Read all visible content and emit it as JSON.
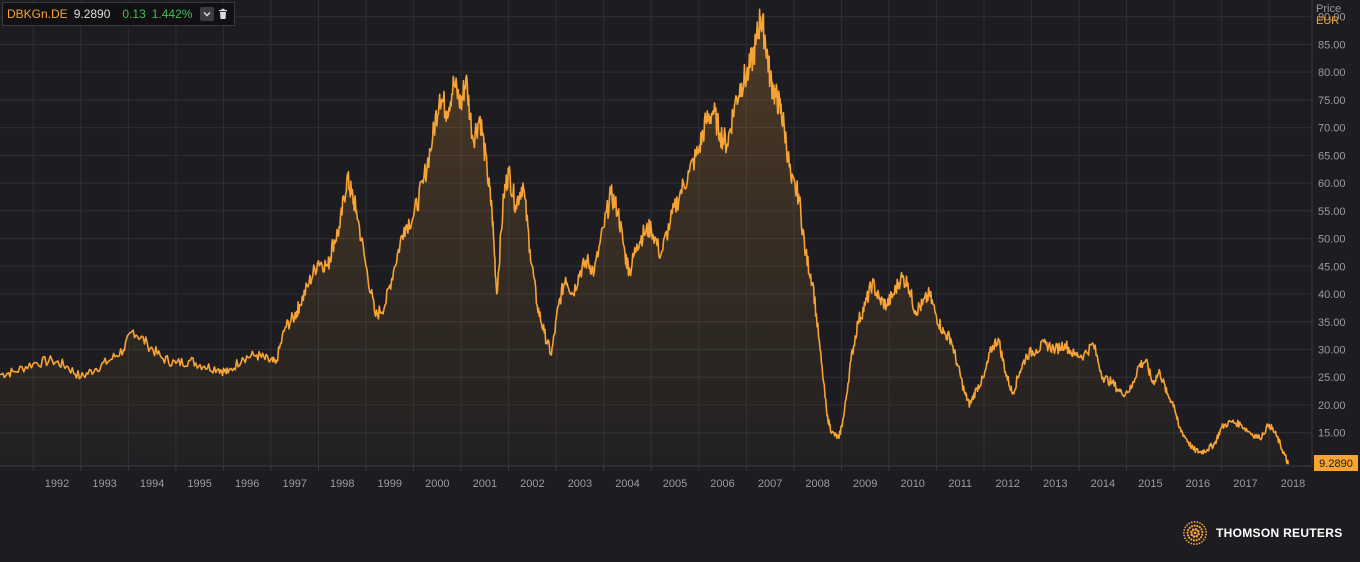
{
  "legend": {
    "ric": "DBKGn.DE",
    "last": "9.2890",
    "change": "0.13",
    "change_pct": "1.442%",
    "dropdown_icon": "chevron-down-icon",
    "delete_icon": "trash-icon"
  },
  "axis": {
    "title": "Price",
    "currency": "EUR"
  },
  "brand": {
    "name": "THOMSON REUTERS",
    "icon": "reuters-dot-logo"
  },
  "colors": {
    "line": "#f7a335",
    "background": "#1d1d21",
    "grid": "#2e2e34",
    "up": "#3fbf56"
  },
  "chart_data": {
    "type": "area",
    "ylim": [
      9,
      93
    ],
    "xlim": [
      1991.3,
      2018.9
    ],
    "grid": true,
    "y_ticks": [
      "15.00",
      "20.00",
      "25.00",
      "30.00",
      "35.00",
      "40.00",
      "45.00",
      "50.00",
      "55.00",
      "60.00",
      "65.00",
      "70.00",
      "75.00",
      "80.00",
      "85.00",
      "90.00"
    ],
    "x_ticks": [
      "1992",
      "1993",
      "1994",
      "1995",
      "1996",
      "1997",
      "1998",
      "1999",
      "2000",
      "2001",
      "2002",
      "2003",
      "2004",
      "2005",
      "2006",
      "2007",
      "2008",
      "2009",
      "2010",
      "2011",
      "2012",
      "2013",
      "2014",
      "2015",
      "2016",
      "2017",
      "2018"
    ],
    "last_price_label": "9.2890",
    "series": [
      {
        "x": [
          1991.3,
          1991.6,
          1992.0,
          1992.4,
          1992.7,
          1993.0,
          1993.3,
          1993.6,
          1993.9,
          1994.1,
          1994.4,
          1994.7,
          1995.0,
          1995.3,
          1995.6,
          1995.9,
          1996.1,
          1996.4,
          1996.7,
          1996.95,
          1997.1,
          1997.3,
          1997.5,
          1997.6,
          1997.8,
          1998.0,
          1998.2,
          1998.3,
          1998.45,
          1998.6,
          1998.7,
          1998.8,
          1999.0,
          1999.2,
          1999.4,
          1999.6,
          1999.8,
          2000.0,
          2000.2,
          2000.4,
          2000.55,
          2000.7,
          2000.85,
          2001.0,
          2001.1,
          2001.25,
          2001.4,
          2001.55,
          2001.65,
          2001.75,
          2001.9,
          2002.0,
          2002.15,
          2002.3,
          2002.45,
          2002.6,
          2002.75,
          2002.9,
          2003.05,
          2003.2,
          2003.35,
          2003.5,
          2003.65,
          2003.8,
          2004.0,
          2004.15,
          2004.3,
          2004.45,
          2004.55,
          2004.7,
          2004.85,
          2005.0,
          2005.2,
          2005.4,
          2005.6,
          2005.8,
          2006.0,
          2006.15,
          2006.3,
          2006.45,
          2006.6,
          2006.75,
          2006.9,
          2007.05,
          2007.2,
          2007.3,
          2007.4,
          2007.5,
          2007.6,
          2007.7,
          2007.8,
          2007.95,
          2008.1,
          2008.25,
          2008.4,
          2008.55,
          2008.7,
          2008.8,
          2008.95,
          2009.05,
          2009.2,
          2009.35,
          2009.5,
          2009.65,
          2009.8,
          2009.95,
          2010.1,
          2010.25,
          2010.4,
          2010.55,
          2010.7,
          2010.85,
          2011.0,
          2011.15,
          2011.3,
          2011.45,
          2011.6,
          2011.7,
          2011.85,
          2012.0,
          2012.15,
          2012.3,
          2012.45,
          2012.6,
          2012.75,
          2012.9,
          2013.1,
          2013.3,
          2013.5,
          2013.7,
          2013.9,
          2014.1,
          2014.3,
          2014.5,
          2014.7,
          2014.9,
          2015.1,
          2015.25,
          2015.4,
          2015.55,
          2015.7,
          2015.85,
          2016.0,
          2016.1,
          2016.25,
          2016.4,
          2016.55,
          2016.7,
          2016.85,
          2017.0,
          2017.2,
          2017.4,
          2017.6,
          2017.8,
          2018.0,
          2018.15,
          2018.3,
          2018.4
        ],
        "values": [
          25.5,
          26.0,
          27.5,
          28.0,
          27.0,
          25.0,
          26.5,
          28.0,
          30.0,
          33.5,
          31.0,
          28.5,
          27.5,
          28.0,
          27.0,
          26.5,
          25.8,
          28.5,
          29.0,
          28.0,
          27.5,
          34.0,
          36.0,
          38.0,
          42.0,
          46.0,
          45.0,
          49.0,
          52.0,
          61.0,
          58.0,
          55.0,
          45.0,
          36.0,
          38.0,
          45.0,
          52.0,
          54.0,
          60.0,
          68.0,
          76.0,
          73.0,
          78.0,
          74.0,
          79.0,
          68.0,
          72.0,
          62.0,
          55.0,
          40.0,
          58.0,
          62.0,
          56.0,
          60.0,
          48.0,
          38.0,
          33.0,
          29.0,
          38.0,
          43.0,
          40.0,
          44.0,
          46.0,
          44.0,
          52.0,
          58.0,
          55.0,
          47.0,
          44.0,
          49.0,
          51.0,
          52.0,
          47.0,
          53.0,
          58.0,
          62.0,
          66.0,
          71.0,
          73.0,
          69.0,
          67.0,
          74.0,
          78.0,
          80.0,
          85.0,
          90.0,
          86.0,
          79.0,
          76.0,
          74.0,
          70.0,
          60.0,
          58.0,
          47.0,
          42.0,
          30.0,
          18.0,
          15.0,
          14.0,
          18.0,
          28.0,
          35.0,
          38.0,
          42.0,
          39.0,
          38.0,
          40.0,
          43.0,
          42.0,
          37.0,
          38.0,
          40.0,
          36.0,
          33.0,
          32.0,
          27.0,
          22.0,
          20.0,
          23.0,
          25.0,
          30.0,
          32.0,
          26.0,
          22.0,
          26.0,
          29.0,
          30.0,
          31.0,
          30.0,
          31.0,
          29.0,
          29.0,
          31.0,
          25.0,
          24.0,
          22.0,
          23.0,
          27.0,
          28.0,
          24.0,
          26.0,
          22.0,
          20.0,
          16.0,
          14.0,
          12.0,
          11.5,
          12.0,
          13.0,
          16.0,
          17.0,
          16.5,
          15.0,
          14.0,
          16.5,
          14.5,
          11.5,
          9.29
        ]
      }
    ]
  }
}
